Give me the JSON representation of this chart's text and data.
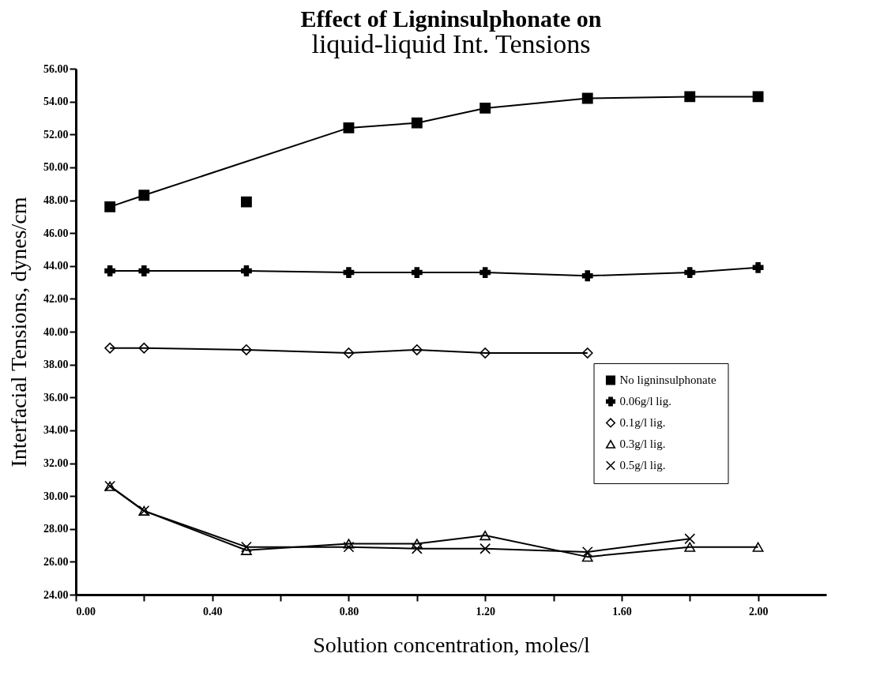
{
  "chart_data": {
    "type": "line",
    "title": "Effect of Ligninsulphonate on",
    "subtitle": "liquid-liquid Int. Tensions",
    "xlabel": "Solution concentration, moles/l",
    "ylabel": "Interfacial Tensions, dynes/cm",
    "x": [
      0.1,
      0.2,
      0.5,
      0.8,
      1.0,
      1.2,
      1.5,
      1.8,
      2.0
    ],
    "series": [
      {
        "name": "No ligninsulphonate",
        "type": "scatter",
        "marker": "square",
        "color": "#000000",
        "values": [
          47.6,
          48.3,
          47.9,
          52.4,
          52.7,
          53.6,
          54.2,
          54.3,
          54.3
        ]
      },
      {
        "type": "line",
        "marker": "none",
        "color": "#000000",
        "x": [
          0.1,
          0.2,
          0.8,
          1.0,
          1.2,
          1.5,
          1.8,
          2.0
        ],
        "values": [
          47.6,
          48.3,
          52.4,
          52.7,
          53.6,
          54.2,
          54.3,
          54.3
        ]
      },
      {
        "name": "0.06g/l lig.",
        "marker": "cross",
        "color": "#000000",
        "values": [
          43.7,
          43.7,
          43.7,
          43.6,
          43.6,
          43.6,
          43.4,
          43.6,
          43.9
        ]
      },
      {
        "name": "0.1g/l lig.",
        "marker": "diamond",
        "color": "#000000",
        "values": [
          39.0,
          39.0,
          38.9,
          38.7,
          38.9,
          38.7,
          38.7,
          null,
          null
        ]
      },
      {
        "name": "0.3g/l lig.",
        "marker": "triangle",
        "color": "#000000",
        "values": [
          30.6,
          29.1,
          26.7,
          27.1,
          27.1,
          27.6,
          26.3,
          26.9,
          26.9
        ]
      },
      {
        "name": "0.5g/l lig.",
        "marker": "x",
        "color": "#000000",
        "values": [
          30.6,
          29.1,
          26.9,
          26.9,
          26.8,
          26.8,
          26.6,
          27.4,
          null
        ]
      }
    ],
    "xlim": [
      0,
      2.2
    ],
    "xticks": [
      {
        "value": 0,
        "label": "0.00"
      },
      {
        "value": 0.2,
        "label": null
      },
      {
        "value": 0.4,
        "label": "0.40"
      },
      {
        "value": 0.6,
        "label": null
      },
      {
        "value": 0.8,
        "label": "0.80"
      },
      {
        "value": 1.0,
        "label": null
      },
      {
        "value": 1.2,
        "label": "1.20"
      },
      {
        "value": 1.4,
        "label": null
      },
      {
        "value": 1.6,
        "label": "1.60"
      },
      {
        "value": 1.8,
        "label": null
      },
      {
        "value": 2.0,
        "label": "2.00"
      }
    ],
    "ylim": [
      24,
      56
    ],
    "yticks": [
      {
        "value": 24,
        "label": "24.00"
      },
      {
        "value": 26,
        "label": "26.00"
      },
      {
        "value": 28,
        "label": "28.00"
      },
      {
        "value": 30,
        "label": "30.00"
      },
      {
        "value": 32,
        "label": "32.00"
      },
      {
        "value": 34,
        "label": "34.00"
      },
      {
        "value": 36,
        "label": "36.00"
      },
      {
        "value": 38,
        "label": "38.00"
      },
      {
        "value": 40,
        "label": "40.00"
      },
      {
        "value": 42,
        "label": "42.00"
      },
      {
        "value": 44,
        "label": "44.00"
      },
      {
        "value": 46,
        "label": "46.00"
      },
      {
        "value": 48,
        "label": "48.00"
      },
      {
        "value": 50,
        "label": "50.00"
      },
      {
        "value": 52,
        "label": "52.00"
      },
      {
        "value": 54,
        "label": "54.00"
      },
      {
        "value": 56,
        "label": "56.00"
      }
    ],
    "grid": false,
    "legend": "bottom right",
    "line_style": "solid"
  }
}
